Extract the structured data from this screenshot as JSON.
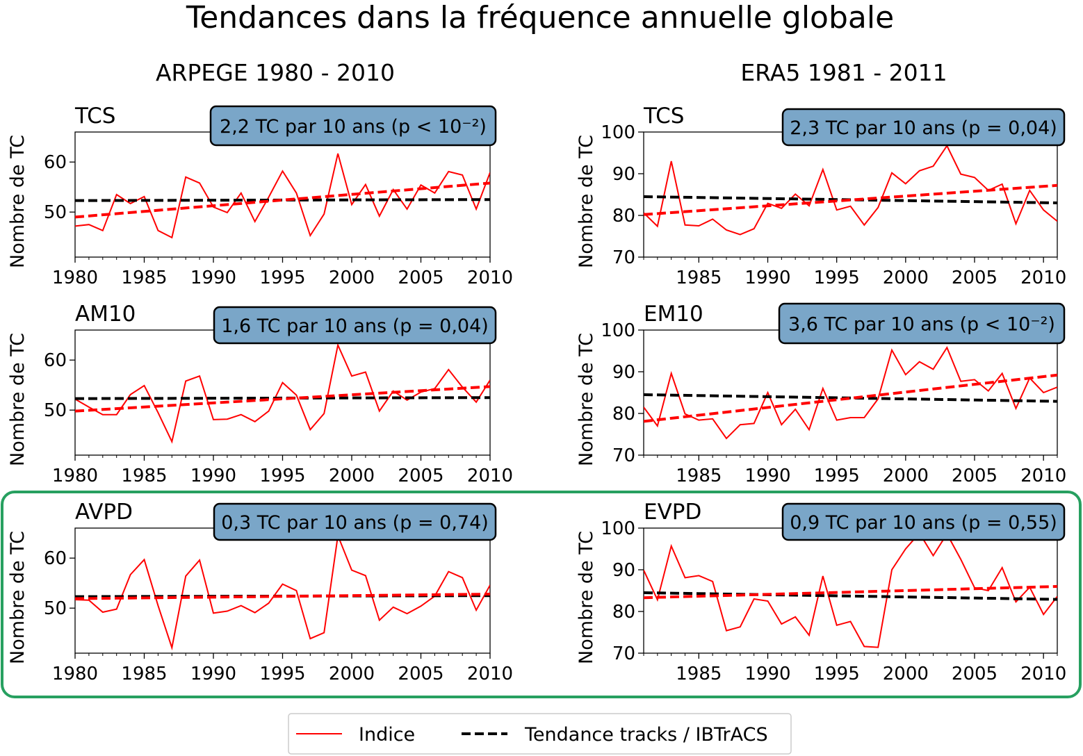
{
  "figure": {
    "title": "Tendances dans la fréquence annuelle globale",
    "left_column_title": "ARPEGE 1980 - 2010",
    "right_column_title": "ERA5 1981 - 2011",
    "highlight_color": "#27a060"
  },
  "legend": {
    "items": [
      {
        "label": "Indice",
        "color": "#ff0000",
        "style": "solid"
      },
      {
        "label": "Tendance tracks / IBTrACS",
        "color": "#000000",
        "style": "dashed"
      }
    ]
  },
  "colors": {
    "index_line": "#ff0000",
    "trend_red": "#ff0000",
    "trend_black": "#000000",
    "annotation_box_fill": "#7aa6c8",
    "annotation_box_border": "#000000"
  },
  "chart_data": [
    {
      "id": "TCS-ARPEGE",
      "type": "line",
      "name": "TCS",
      "trend_text": "2,2 TC par 10 ans (p < 10⁻²)",
      "ylabel": "Nombre de TC",
      "xlim": [
        1980,
        2010
      ],
      "ylim": [
        41,
        66
      ],
      "yticks": [
        50,
        60
      ],
      "xticks": [
        1980,
        1985,
        1990,
        1995,
        2000,
        2005,
        2010
      ],
      "x_start": 1980,
      "values": [
        47.2,
        47.5,
        46.3,
        53.5,
        51.7,
        53.1,
        46.3,
        44.9,
        57.0,
        55.8,
        51.0,
        49.9,
        53.8,
        48.1,
        53.0,
        58.2,
        53.8,
        45.3,
        49.6,
        61.7,
        51.5,
        55.5,
        49.2,
        54.5,
        50.6,
        55.4,
        53.8,
        58.1,
        57.4,
        50.6,
        57.9
      ],
      "trend_index": [
        49.0,
        55.8
      ],
      "trend_reference": [
        52.3,
        52.5
      ]
    },
    {
      "id": "TCS-ERA5",
      "type": "line",
      "name": "TCS",
      "trend_text": "2,3 TC par 10 ans (p = 0,04)",
      "ylabel": "Nombre de TC",
      "xlim": [
        1981,
        2011
      ],
      "ylim": [
        70,
        100
      ],
      "yticks": [
        70,
        80,
        90,
        100
      ],
      "xticks": [
        1985,
        1990,
        1995,
        2000,
        2005,
        2010
      ],
      "x_start": 1981,
      "values": [
        80.6,
        77.4,
        93.0,
        77.7,
        77.5,
        79.1,
        76.5,
        75.4,
        76.8,
        82.9,
        81.7,
        85.1,
        82.3,
        91.0,
        81.3,
        82.2,
        77.7,
        81.9,
        90.2,
        87.6,
        90.7,
        91.8,
        96.7,
        89.9,
        89.1,
        86.0,
        87.5,
        78.0,
        86.0,
        81.3,
        78.6
      ],
      "trend_index": [
        80.2,
        87.2
      ],
      "trend_reference": [
        84.5,
        83.0
      ]
    },
    {
      "id": "AM10",
      "type": "line",
      "name": "AM10",
      "trend_text": "1,6 TC par 10 ans (p = 0,04)",
      "ylabel": "Nombre de TC",
      "xlim": [
        1980,
        2010
      ],
      "ylim": [
        41,
        66
      ],
      "yticks": [
        50,
        60
      ],
      "xticks": [
        1980,
        1985,
        1990,
        1995,
        2000,
        2005,
        2010
      ],
      "x_start": 1980,
      "values": [
        52.2,
        50.6,
        49.1,
        49.1,
        53.1,
        54.9,
        49.5,
        43.7,
        55.8,
        56.8,
        48.1,
        48.2,
        49.1,
        47.7,
        49.8,
        55.5,
        53.0,
        46.1,
        49.3,
        63.0,
        56.8,
        57.6,
        49.8,
        53.8,
        52.0,
        53.6,
        54.3,
        58.1,
        54.6,
        51.6,
        56.0
      ],
      "trend_index": [
        49.8,
        54.7
      ],
      "trend_reference": [
        52.3,
        52.5
      ]
    },
    {
      "id": "EM10",
      "type": "line",
      "name": "EM10",
      "trend_text": "3,6 TC par 10 ans (p < 10⁻²)",
      "ylabel": "Nombre de TC",
      "xlim": [
        1981,
        2011
      ],
      "ylim": [
        70,
        100
      ],
      "yticks": [
        70,
        80,
        90,
        100
      ],
      "xticks": [
        1985,
        1990,
        1995,
        2000,
        2005,
        2010
      ],
      "x_start": 1981,
      "values": [
        81.5,
        77.0,
        89.6,
        79.9,
        78.4,
        78.7,
        74.0,
        77.3,
        77.6,
        85.0,
        77.3,
        81.0,
        76.1,
        86.0,
        78.4,
        79.0,
        79.0,
        83.5,
        95.2,
        89.3,
        92.4,
        90.6,
        95.8,
        87.7,
        88.1,
        85.4,
        89.6,
        81.2,
        88.5,
        85.0,
        86.3
      ],
      "trend_index": [
        78.1,
        89.2
      ],
      "trend_reference": [
        84.5,
        82.9
      ]
    },
    {
      "id": "AVPD",
      "type": "line",
      "name": "AVPD",
      "trend_text": "0,3 TC par 10 ans (p = 0,74)",
      "ylabel": "Nombre de TC",
      "xlim": [
        1980,
        2010
      ],
      "ylim": [
        41,
        66
      ],
      "yticks": [
        50,
        60
      ],
      "xticks": [
        1980,
        1985,
        1990,
        1995,
        2000,
        2005,
        2010
      ],
      "x_start": 1980,
      "values": [
        51.7,
        51.6,
        49.2,
        49.8,
        56.7,
        59.7,
        50.5,
        42.1,
        56.4,
        59.6,
        49.0,
        49.4,
        50.5,
        49.1,
        51.0,
        54.8,
        53.5,
        43.9,
        45.1,
        64.5,
        57.6,
        56.5,
        47.6,
        50.2,
        48.9,
        50.4,
        52.4,
        57.3,
        56.1,
        49.6,
        54.6
      ],
      "trend_index": [
        51.9,
        52.8
      ],
      "trend_reference": [
        52.3,
        52.5
      ]
    },
    {
      "id": "EVPD",
      "type": "line",
      "name": "EVPD",
      "trend_text": "0,9 TC par 10 ans (p = 0,55)",
      "ylabel": "Nombre de TC",
      "xlim": [
        1981,
        2011
      ],
      "ylim": [
        70,
        100
      ],
      "yticks": [
        70,
        80,
        90,
        100
      ],
      "xticks": [
        1985,
        1990,
        1995,
        2000,
        2005,
        2010
      ],
      "x_start": 1981,
      "values": [
        89.9,
        82.8,
        95.7,
        88.1,
        88.6,
        87.2,
        75.4,
        76.3,
        83.0,
        82.5,
        77.0,
        78.7,
        74.3,
        88.5,
        76.7,
        77.6,
        71.6,
        71.4,
        90.0,
        95.0,
        98.8,
        93.4,
        98.6,
        92.5,
        85.7,
        85.0,
        90.5,
        82.3,
        85.8,
        79.3,
        83.6
      ],
      "trend_index": [
        83.3,
        86.0
      ],
      "trend_reference": [
        84.5,
        82.9
      ]
    }
  ]
}
